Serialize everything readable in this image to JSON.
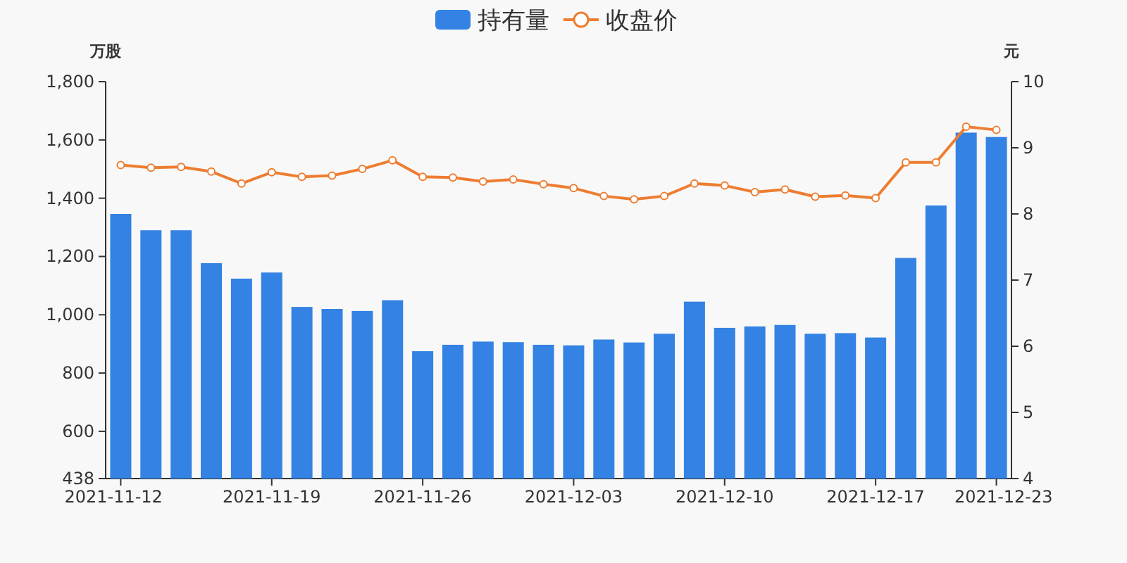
{
  "chart_data": {
    "type": "bar",
    "categories": [
      "2021-11-12",
      null,
      null,
      null,
      null,
      "2021-11-19",
      null,
      null,
      null,
      null,
      "2021-11-26",
      null,
      null,
      null,
      null,
      "2021-12-03",
      null,
      null,
      null,
      null,
      "2021-12-10",
      null,
      null,
      null,
      null,
      "2021-12-17",
      null,
      null,
      null,
      "2021-12-23"
    ],
    "series": [
      {
        "name": "持有量",
        "color": "#3482e3",
        "values": [
          1346,
          1290,
          1290,
          1177,
          1124,
          1145,
          1027,
          1020,
          1013,
          1050,
          875,
          897,
          908,
          906,
          897,
          895,
          915,
          905,
          935,
          1045,
          955,
          960,
          965,
          935,
          937,
          922,
          1195,
          1375,
          1625,
          1610
        ]
      },
      {
        "name": "收盘价",
        "type": "line",
        "axis": "y2",
        "color": "#ed7d31",
        "marker": "circle",
        "values": [
          8.74,
          8.7,
          8.71,
          8.64,
          8.46,
          8.63,
          8.56,
          8.58,
          8.68,
          8.81,
          8.56,
          8.55,
          8.49,
          8.52,
          8.45,
          8.39,
          8.27,
          8.22,
          8.27,
          8.46,
          8.43,
          8.33,
          8.37,
          8.26,
          8.28,
          8.24,
          8.78,
          8.78,
          9.32,
          9.27
        ]
      }
    ],
    "ylabel": "万股",
    "y2label": "元",
    "ylim": [
      438,
      1800
    ],
    "yticks": [
      438,
      600,
      800,
      {
        "value": 1000,
        "label": "1,000"
      },
      {
        "value": 1200,
        "label": "1,200"
      },
      {
        "value": 1400,
        "label": "1,400"
      },
      {
        "value": 1600,
        "label": "1,600"
      },
      {
        "value": 1800,
        "label": "1,800"
      }
    ],
    "y2lim": [
      4,
      10
    ],
    "y2ticks": [
      4,
      5,
      6,
      7,
      8,
      9,
      10
    ],
    "legend": "top",
    "grid": false
  }
}
